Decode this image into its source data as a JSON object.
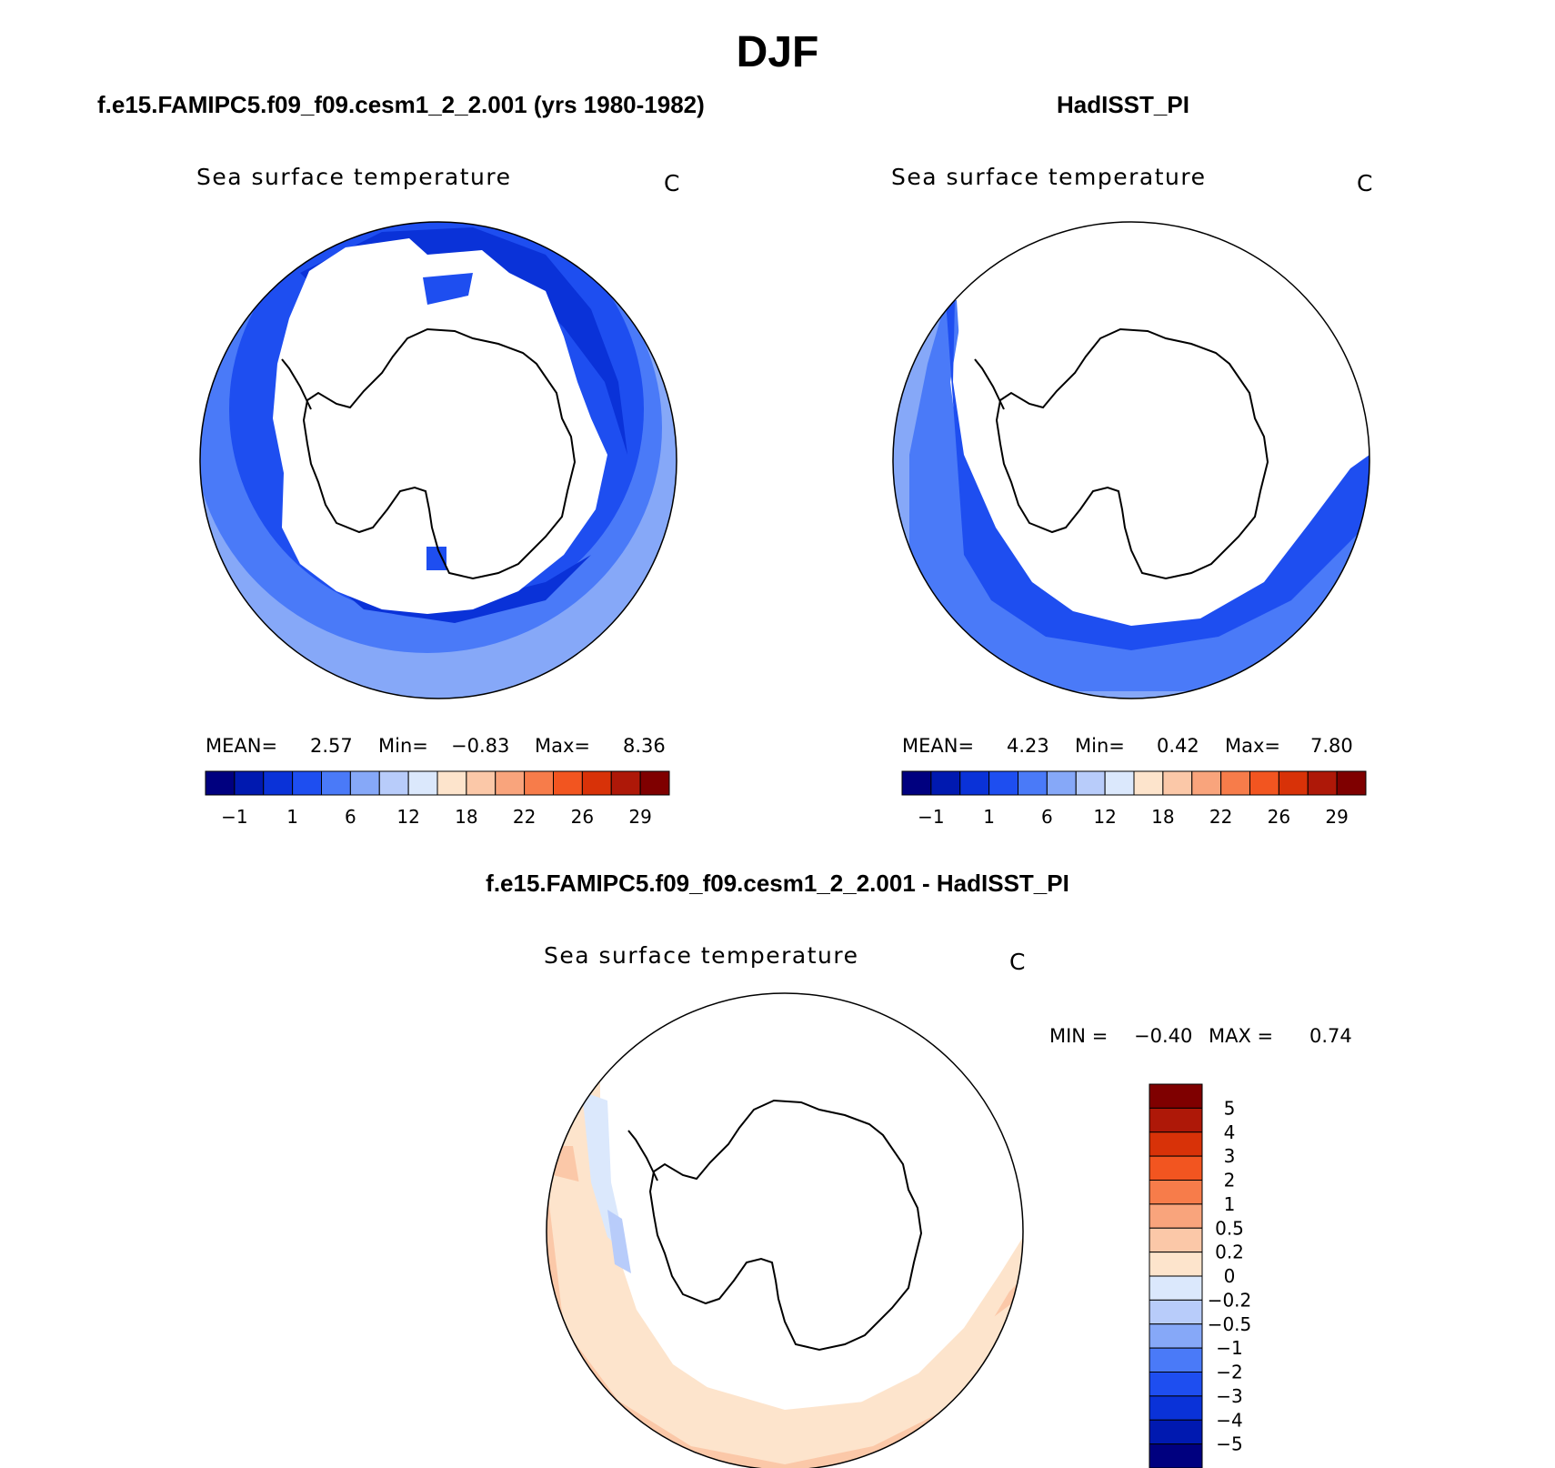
{
  "figure": {
    "season": "DJF"
  },
  "panels": [
    {
      "title": "f.e15.FAMIPC5.f09_f09.cesm1_2_2.001 (yrs 1980-1982)",
      "variable": "Sea surface temperature",
      "units": "C",
      "stats": {
        "mean_label": "MEAN=",
        "mean": "2.57",
        "min_label": "Min=",
        "min": "−0.83",
        "max_label": "Max=",
        "max": "8.36"
      }
    },
    {
      "title": "HadISST_PI",
      "variable": "Sea surface temperature",
      "units": "C",
      "stats": {
        "mean_label": "MEAN=",
        "mean": "4.23",
        "min_label": "Min=",
        "min": "0.42",
        "max_label": "Max=",
        "max": "7.80"
      }
    },
    {
      "title": "f.e15.FAMIPC5.f09_f09.cesm1_2_2.001 - HadISST_PI",
      "variable": "Sea surface temperature",
      "units": "C",
      "stats": {
        "min_label": "MIN =",
        "min": "−0.40",
        "max_label": "MAX =",
        "max": "0.74"
      }
    }
  ],
  "colorbars": {
    "sst": {
      "colors": [
        "#00007f",
        "#0019b0",
        "#0a32d8",
        "#1e4ef0",
        "#4a7af8",
        "#86a8f8",
        "#b8ccfa",
        "#dbe8fc",
        "#fde4cc",
        "#fbc8a8",
        "#f9a47c",
        "#f77c4a",
        "#f25520",
        "#d83208",
        "#ae1808",
        "#7f0000"
      ],
      "ticks": [
        "−1",
        "1",
        "6",
        "12",
        "18",
        "22",
        "26",
        "29"
      ]
    },
    "diff": {
      "colors": [
        "#7f0000",
        "#ae1808",
        "#d83208",
        "#f25520",
        "#f77c4a",
        "#f9a47c",
        "#fbc8a8",
        "#fde4cc",
        "#dbe8fc",
        "#b8ccfa",
        "#86a8f8",
        "#4a7af8",
        "#1e4ef0",
        "#0a32d8",
        "#0019b0",
        "#00007f"
      ],
      "ticks": [
        "5",
        "4",
        "3",
        "2",
        "1",
        "0.5",
        "0.2",
        "0",
        "−0.2",
        "−0.5",
        "−1",
        "−2",
        "−3",
        "−4",
        "−5"
      ]
    }
  }
}
